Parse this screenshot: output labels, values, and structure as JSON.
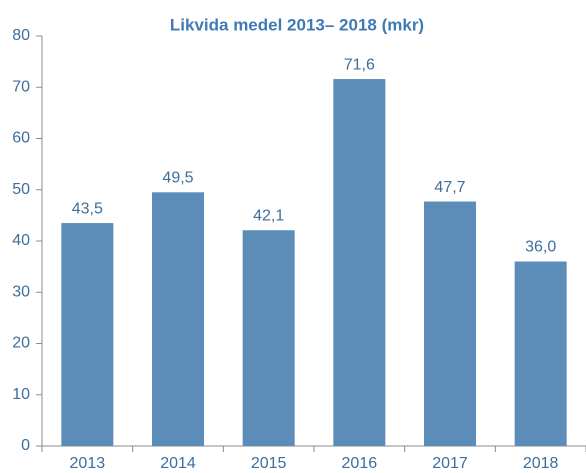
{
  "chart_data": {
    "type": "bar",
    "title": "Likvida medel 2013– 2018 (mkr)",
    "categories": [
      "2013",
      "2014",
      "2015",
      "2016",
      "2017",
      "2018"
    ],
    "values": [
      43.5,
      49.5,
      42.1,
      71.6,
      47.7,
      36.0
    ],
    "value_labels": [
      "43,5",
      "49,5",
      "42,1",
      "71,6",
      "47,7",
      "36,0"
    ],
    "color": "#5b8db8",
    "ylim": [
      0,
      80
    ],
    "yticks": [
      0,
      10,
      20,
      30,
      40,
      50,
      60,
      70,
      80
    ],
    "grid": false
  }
}
